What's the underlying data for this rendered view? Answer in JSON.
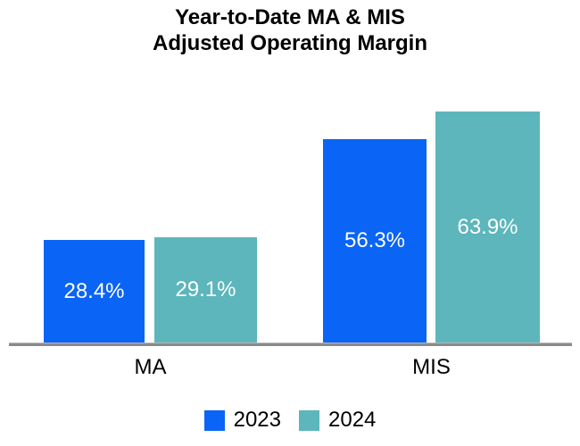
{
  "title": {
    "line1": "Year-to-Date MA & MIS",
    "line2": "Adjusted Operating Margin"
  },
  "chart_data": {
    "type": "bar",
    "title": "Year-to-Date MA & MIS Adjusted Operating Margin",
    "categories": [
      "MA",
      "MIS"
    ],
    "series": [
      {
        "name": "2023",
        "color": "#0a64f5",
        "values": [
          28.4,
          56.3
        ],
        "labels": [
          "28.4%",
          "56.3%"
        ]
      },
      {
        "name": "2024",
        "color": "#5cb6bc",
        "values": [
          29.1,
          63.9
        ],
        "labels": [
          "29.1%",
          "63.9%"
        ]
      }
    ],
    "value_suffix": "%",
    "xlabel": "",
    "ylabel": "",
    "ylim": [
      0,
      70
    ],
    "grid": false,
    "y_axis_visible": false,
    "legend_position": "bottom",
    "bar_label_color": "#ffffff",
    "axis_line_color": "#8a8a8a"
  }
}
